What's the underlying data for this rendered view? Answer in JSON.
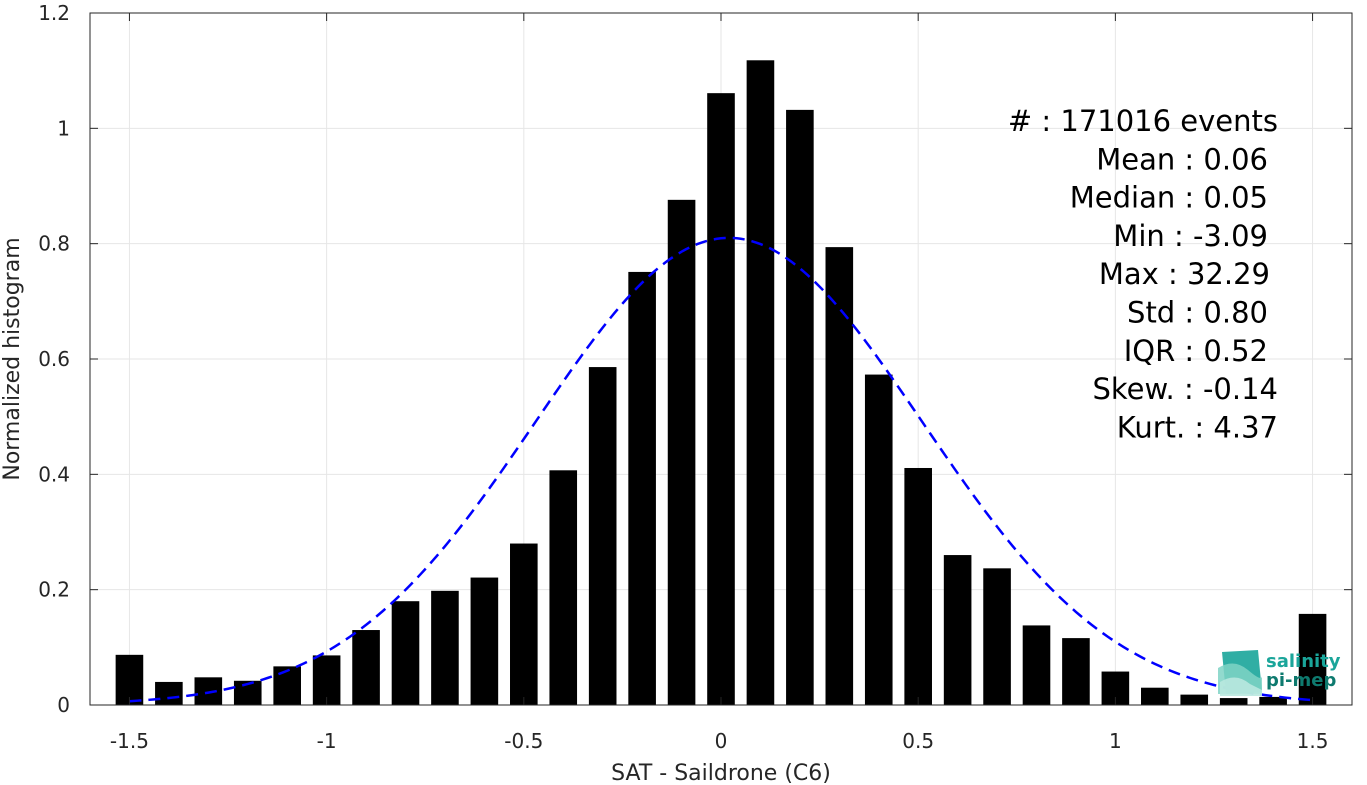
{
  "chart_data": {
    "type": "bar",
    "xlabel": "SAT - Saildrone (C6)",
    "ylabel": "Normalized histogram",
    "xlim": [
      -1.6,
      1.6
    ],
    "ylim": [
      0,
      1.2
    ],
    "xticks": [
      -1.5,
      -1,
      -0.5,
      0,
      0.5,
      1,
      1.5
    ],
    "xtick_labels": [
      "-1.5",
      "-1",
      "-0.5",
      "0",
      "0.5",
      "1",
      "1.5"
    ],
    "yticks": [
      0,
      0.2,
      0.4,
      0.6,
      0.8,
      1,
      1.2
    ],
    "ytick_labels": [
      "0",
      "0.2",
      "0.4",
      "0.6",
      "0.8",
      "1",
      "1.2"
    ],
    "grid": true,
    "bar_width": 0.07,
    "bar_color": "#000000",
    "bins": [
      -1.5,
      -1.4,
      -1.3,
      -1.2,
      -1.1,
      -1.0,
      -0.9,
      -0.8,
      -0.7,
      -0.6,
      -0.5,
      -0.4,
      -0.3,
      -0.2,
      -0.1,
      0.0,
      0.1,
      0.2,
      0.3,
      0.4,
      0.5,
      0.6,
      0.7,
      0.8,
      0.9,
      1.0,
      1.1,
      1.2,
      1.3,
      1.4,
      1.5
    ],
    "values": [
      0.087,
      0.04,
      0.048,
      0.042,
      0.067,
      0.086,
      0.13,
      0.18,
      0.198,
      0.221,
      0.28,
      0.407,
      0.586,
      0.751,
      0.876,
      1.061,
      1.118,
      1.032,
      0.794,
      0.573,
      0.411,
      0.26,
      0.237,
      0.138,
      0.116,
      0.058,
      0.03,
      0.018,
      0.012,
      0.014,
      0.158
    ],
    "fit": {
      "type": "gaussian",
      "mean": 0.02,
      "std": 0.49,
      "peak": 0.81,
      "color": "#0000ff",
      "style": "dashed"
    },
    "stats_lines": [
      "#  : 171016 events",
      "Mean : 0.06",
      "Median : 0.05",
      "Min : -3.09",
      "Max : 32.29",
      "Std : 0.80",
      "IQR : 0.52",
      "Skew. : -0.14",
      "Kurt. : 4.37"
    ]
  },
  "logo": {
    "line1": "salinity",
    "line2": "pi-mep",
    "color1": "#1aa59a",
    "color2": "#0e7a6f"
  }
}
